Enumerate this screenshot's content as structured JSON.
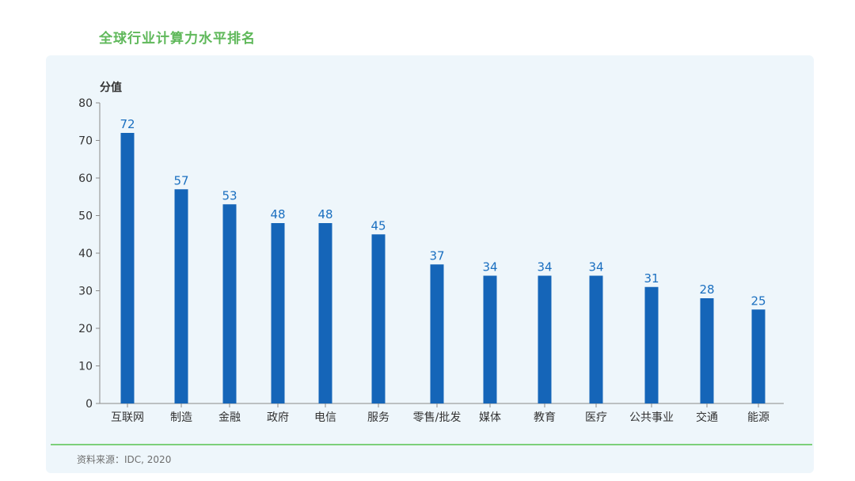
{
  "title": "全球行业计算力水平排名",
  "source": "资料来源：IDC, 2020",
  "chart_data": {
    "type": "bar",
    "title": "全球行业计算力水平排名",
    "ylabel": "分值",
    "xlabel": "",
    "ylim": [
      0,
      80
    ],
    "yticks": [
      0,
      10,
      20,
      30,
      40,
      50,
      60,
      70,
      80
    ],
    "grid": false,
    "bar_color": "#1565b8",
    "label_color": "#1a6fc0",
    "categories": [
      "互联网",
      "制造",
      "金融",
      "政府",
      "电信",
      "服务",
      "零售/批发",
      "媒体",
      "教育",
      "医疗",
      "公共事业",
      "交通",
      "能源"
    ],
    "values": [
      72,
      57,
      53,
      48,
      48,
      45,
      37,
      34,
      34,
      34,
      31,
      28,
      25
    ]
  }
}
